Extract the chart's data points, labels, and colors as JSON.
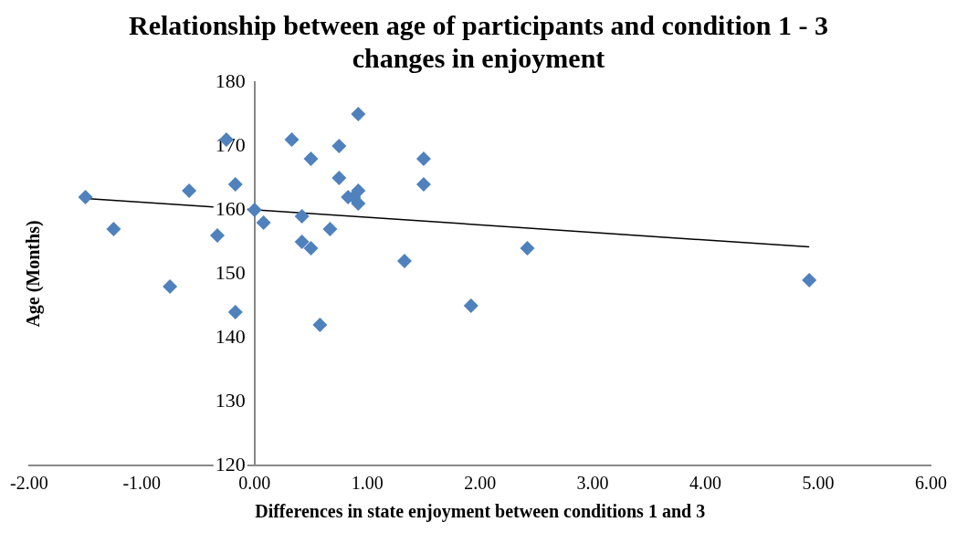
{
  "chart_data": {
    "type": "scatter",
    "title": "Relationship between age of participants and condition 1 - 3 changes in enjoyment",
    "xlabel": "Differences in state enjoyment between conditions 1 and 3",
    "ylabel": "Age (Months)",
    "marker": "diamond",
    "legend": false,
    "grid": false,
    "xlim": [
      -2,
      6
    ],
    "xticks": [
      {
        "value": -2,
        "label": "-2.00"
      },
      {
        "value": -1,
        "label": "-1.00"
      },
      {
        "value": 0,
        "label": "0.00"
      },
      {
        "value": 1,
        "label": "1.00"
      },
      {
        "value": 2,
        "label": "2.00"
      },
      {
        "value": 3,
        "label": "3.00"
      },
      {
        "value": 4,
        "label": "4.00"
      },
      {
        "value": 5,
        "label": "5.00"
      },
      {
        "value": 6,
        "label": "6.00"
      }
    ],
    "ylim": [
      120,
      180
    ],
    "yticks": [
      120,
      130,
      140,
      150,
      160,
      170,
      180
    ],
    "series": [
      {
        "type": "scatter",
        "color": "#4f81bd",
        "x": [
          -1.5,
          -1.25,
          -0.75,
          -0.58,
          -0.33,
          -0.25,
          -0.17,
          -0.17,
          0,
          0.08,
          0.33,
          0.42,
          0.42,
          0.5,
          0.5,
          0.58,
          0.67,
          0.75,
          0.75,
          0.83,
          0.88,
          0.92,
          0.92,
          0.92,
          1.33,
          1.5,
          1.5,
          1.92,
          2.42,
          4.92
        ],
        "values": [
          162,
          157,
          148,
          163,
          156,
          171,
          164,
          144,
          160,
          158,
          171,
          159,
          155,
          168,
          154,
          142,
          157,
          170,
          165,
          162,
          162,
          175,
          163,
          161,
          152,
          168,
          164,
          145,
          154,
          149
        ]
      },
      {
        "type": "line",
        "color": "#000000",
        "marker": "none",
        "x": [
          -1.5,
          4.92
        ],
        "values": [
          161.8,
          154.2
        ]
      }
    ]
  }
}
